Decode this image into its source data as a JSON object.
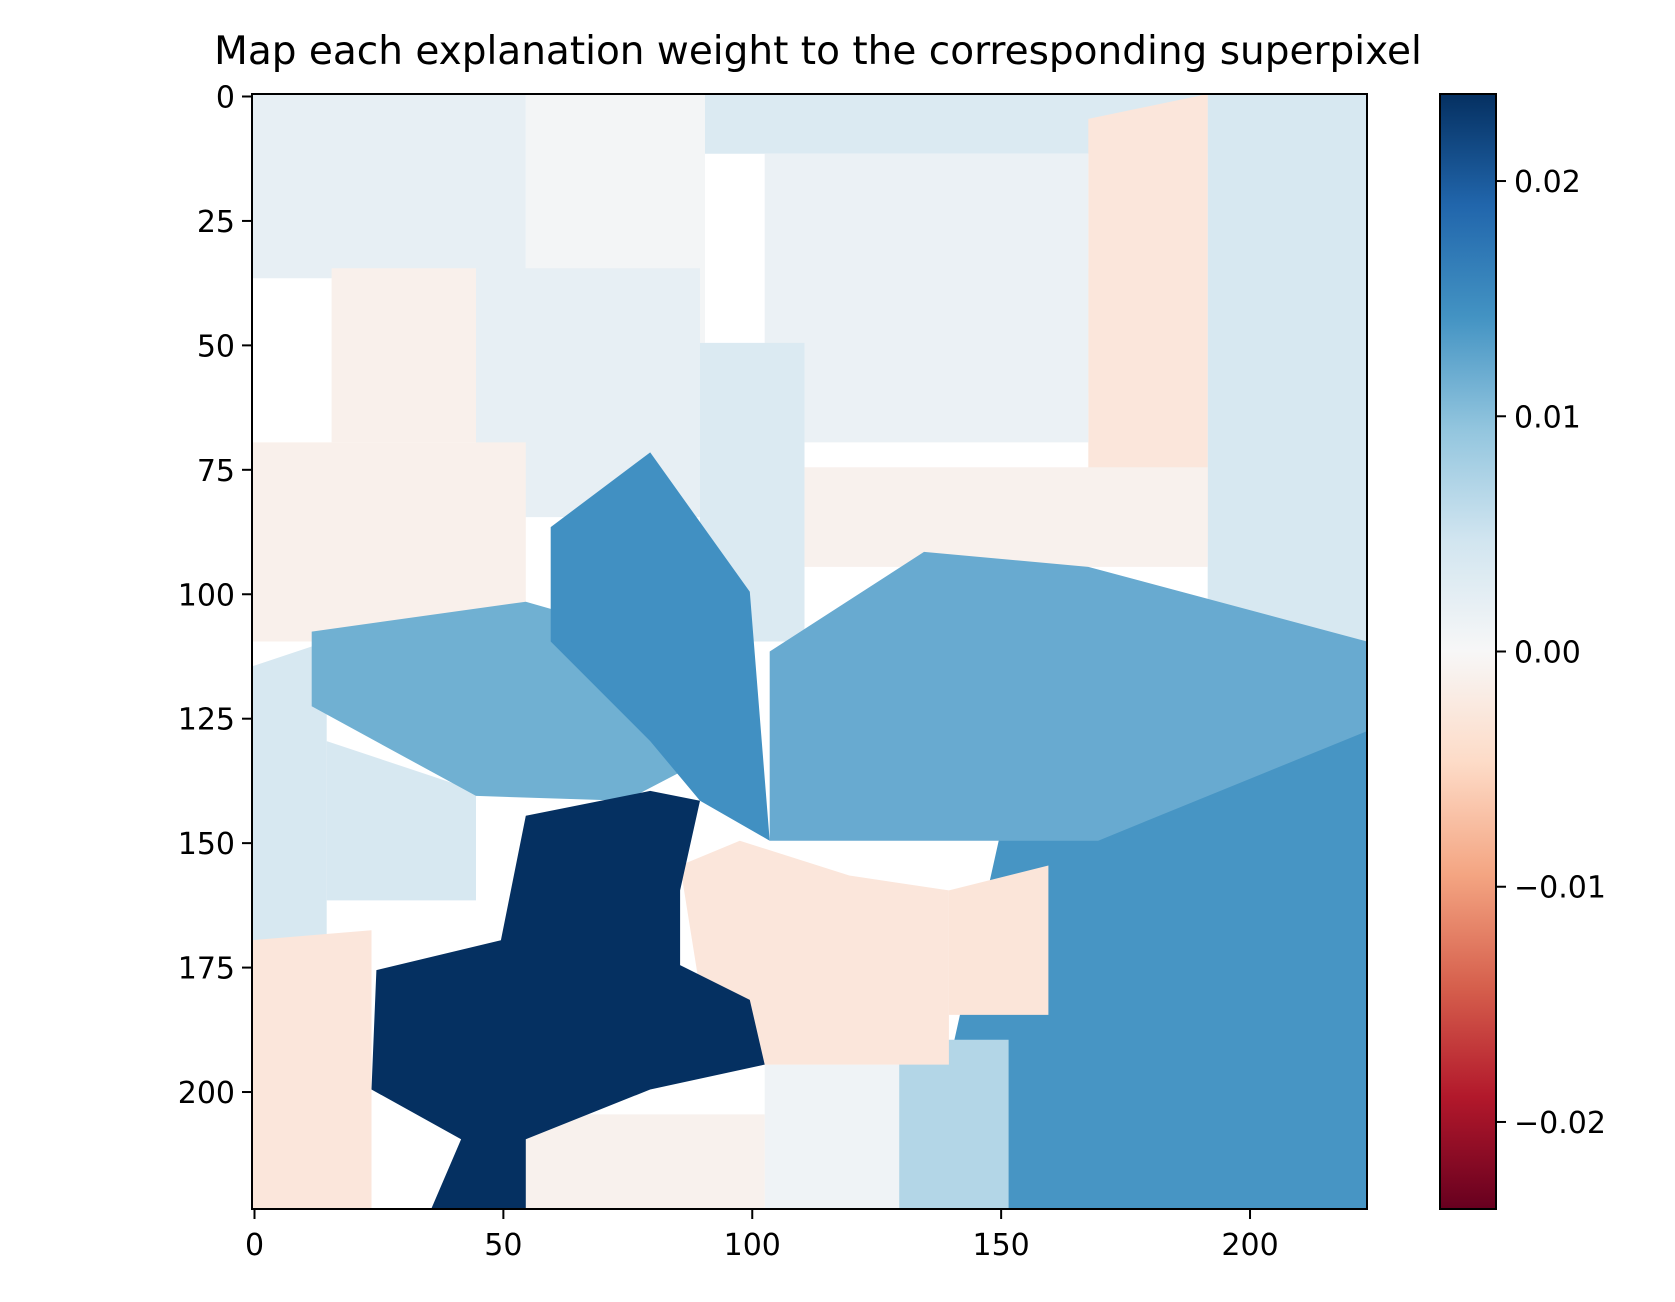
{
  "chart_data": {
    "type": "heatmap",
    "title": "Map each explanation weight to the corresponding superpixel",
    "xlabel": "",
    "ylabel": "",
    "image_size": [
      224,
      224
    ],
    "xlim": [
      -0.5,
      223.5
    ],
    "ylim": [
      223.5,
      -0.5
    ],
    "x_ticks": [
      0,
      50,
      100,
      150,
      200
    ],
    "y_ticks": [
      0,
      25,
      50,
      75,
      100,
      125,
      150,
      175,
      200
    ],
    "colormap": "RdBu",
    "vmin": -0.0237,
    "vmax": 0.0237,
    "colorbar_ticks": [
      0.02,
      0.01,
      0.0,
      -0.01,
      -0.02
    ],
    "colorbar_tick_labels": [
      "0.02",
      "0.01",
      "0.00",
      "−0.01",
      "−0.02"
    ],
    "grid": false,
    "regions": [
      {
        "weight": 0.002,
        "polygon": [
          [
            0,
            0
          ],
          [
            55,
            0
          ],
          [
            55,
            37
          ],
          [
            0,
            37
          ]
        ]
      },
      {
        "weight": 0.0005,
        "polygon": [
          [
            55,
            0
          ],
          [
            91,
            0
          ],
          [
            91,
            50
          ],
          [
            55,
            50
          ]
        ]
      },
      {
        "weight": 0.0035,
        "polygon": [
          [
            91,
            0
          ],
          [
            192,
            0
          ],
          [
            192,
            12
          ],
          [
            91,
            12
          ]
        ]
      },
      {
        "weight": 0.004,
        "polygon": [
          [
            192,
            0
          ],
          [
            224,
            0
          ],
          [
            224,
            115
          ],
          [
            192,
            115
          ]
        ]
      },
      {
        "weight": -0.0028,
        "polygon": [
          [
            168,
            5
          ],
          [
            192,
            0
          ],
          [
            192,
            90
          ],
          [
            168,
            90
          ]
        ]
      },
      {
        "weight": -0.0025,
        "polygon": [
          [
            155,
            35
          ],
          [
            168,
            35
          ],
          [
            168,
            60
          ],
          [
            155,
            60
          ]
        ]
      },
      {
        "weight": 0.0015,
        "polygon": [
          [
            103,
            12
          ],
          [
            168,
            12
          ],
          [
            168,
            70
          ],
          [
            103,
            70
          ]
        ]
      },
      {
        "weight": -0.001,
        "polygon": [
          [
            111,
            75
          ],
          [
            192,
            75
          ],
          [
            192,
            95
          ],
          [
            111,
            95
          ]
        ]
      },
      {
        "weight": 0.0035,
        "polygon": [
          [
            90,
            50
          ],
          [
            111,
            50
          ],
          [
            111,
            110
          ],
          [
            90,
            110
          ]
        ]
      },
      {
        "weight": 0.002,
        "polygon": [
          [
            45,
            35
          ],
          [
            90,
            35
          ],
          [
            90,
            85
          ],
          [
            45,
            85
          ]
        ]
      },
      {
        "weight": -0.0012,
        "polygon": [
          [
            0,
            70
          ],
          [
            55,
            70
          ],
          [
            55,
            110
          ],
          [
            0,
            110
          ]
        ]
      },
      {
        "weight": -0.0012,
        "polygon": [
          [
            16,
            35
          ],
          [
            45,
            35
          ],
          [
            45,
            70
          ],
          [
            16,
            70
          ]
        ]
      },
      {
        "weight": 0.004,
        "polygon": [
          [
            0,
            115
          ],
          [
            15,
            110
          ],
          [
            15,
            175
          ],
          [
            0,
            175
          ]
        ]
      },
      {
        "weight": 0.004,
        "polygon": [
          [
            15,
            130
          ],
          [
            45,
            140
          ],
          [
            45,
            162
          ],
          [
            15,
            162
          ]
        ]
      },
      {
        "weight": 0.0115,
        "polygon": [
          [
            12,
            108
          ],
          [
            55,
            102
          ],
          [
            90,
            112
          ],
          [
            98,
            130
          ],
          [
            75,
            142
          ],
          [
            45,
            141
          ],
          [
            12,
            123
          ]
        ]
      },
      {
        "weight": 0.0145,
        "polygon": [
          [
            60,
            87
          ],
          [
            80,
            72
          ],
          [
            100,
            100
          ],
          [
            104,
            150
          ],
          [
            90,
            142
          ],
          [
            80,
            130
          ],
          [
            60,
            110
          ]
        ]
      },
      {
        "weight": 0.012,
        "polygon": [
          [
            104,
            112
          ],
          [
            135,
            92
          ],
          [
            168,
            95
          ],
          [
            224,
            110
          ],
          [
            224,
            150
          ],
          [
            170,
            160
          ],
          [
            150,
            150
          ],
          [
            104,
            150
          ]
        ]
      },
      {
        "weight": 0.014,
        "polygon": [
          [
            150,
            150
          ],
          [
            170,
            150
          ],
          [
            224,
            128
          ],
          [
            224,
            224
          ],
          [
            152,
            224
          ],
          [
            140,
            195
          ]
        ]
      },
      {
        "weight": 0.007,
        "polygon": [
          [
            130,
            190
          ],
          [
            152,
            190
          ],
          [
            152,
            224
          ],
          [
            130,
            224
          ]
        ]
      },
      {
        "weight": 0.001,
        "polygon": [
          [
            103,
            195
          ],
          [
            130,
            195
          ],
          [
            130,
            224
          ],
          [
            103,
            224
          ]
        ]
      },
      {
        "weight": -0.001,
        "polygon": [
          [
            55,
            205
          ],
          [
            103,
            205
          ],
          [
            103,
            224
          ],
          [
            55,
            224
          ]
        ]
      },
      {
        "weight": -0.0028,
        "polygon": [
          [
            0,
            170
          ],
          [
            24,
            168
          ],
          [
            24,
            224
          ],
          [
            0,
            224
          ]
        ]
      },
      {
        "weight": -0.0028,
        "polygon": [
          [
            86,
            155
          ],
          [
            98,
            150
          ],
          [
            120,
            157
          ],
          [
            140,
            160
          ],
          [
            140,
            195
          ],
          [
            103,
            195
          ],
          [
            90,
            180
          ]
        ]
      },
      {
        "weight": -0.003,
        "polygon": [
          [
            140,
            160
          ],
          [
            160,
            155
          ],
          [
            160,
            185
          ],
          [
            140,
            185
          ]
        ]
      },
      {
        "weight": 0.024,
        "polygon": [
          [
            36,
            224
          ],
          [
            42,
            210
          ],
          [
            24,
            200
          ],
          [
            25,
            176
          ],
          [
            50,
            170
          ],
          [
            55,
            145
          ],
          [
            80,
            140
          ],
          [
            90,
            142
          ],
          [
            86,
            160
          ],
          [
            86,
            175
          ],
          [
            100,
            182
          ],
          [
            103,
            195
          ],
          [
            80,
            200
          ],
          [
            55,
            210
          ],
          [
            55,
            224
          ]
        ]
      }
    ]
  }
}
